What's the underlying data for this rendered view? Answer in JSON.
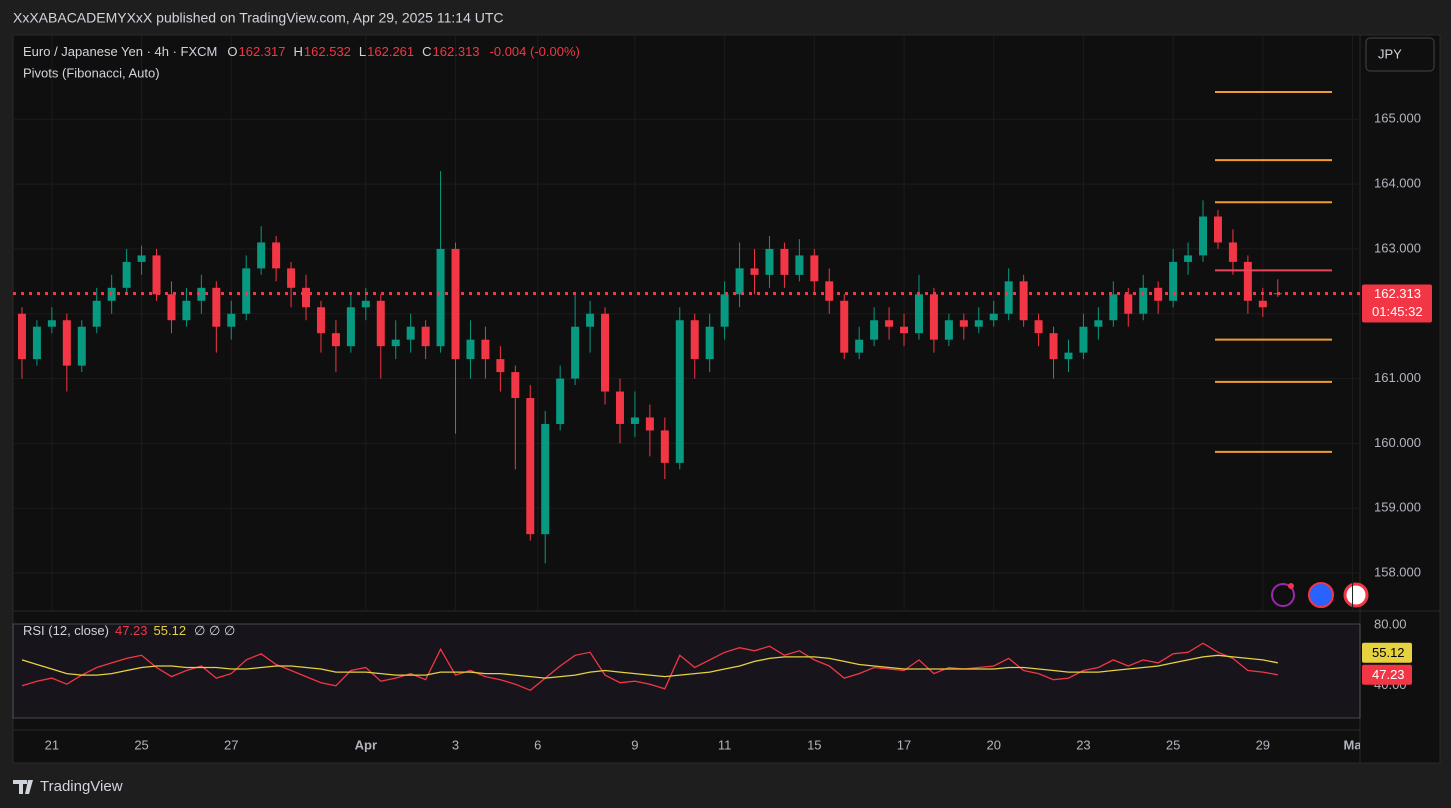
{
  "header": {
    "published": "XxXABACADEMYXxX published on TradingView.com, Apr 29, 2025 11:14 UTC",
    "brand": "TradingView"
  },
  "chart_data": {
    "type": "candlestick",
    "symbol": "Euro / Japanese Yen · 4h · FXCM",
    "ohlc_labels": [
      "O",
      "H",
      "L",
      "C"
    ],
    "change": {
      "value": -0.004,
      "label": "-0.004 (-0.00%)"
    },
    "currency": "JPY",
    "countdown": "01:45:32",
    "up_color": "#089981",
    "down_color": "#f23645",
    "grid": true,
    "candles": [
      [
        162.0,
        162.1,
        161.0,
        161.3
      ],
      [
        161.3,
        161.9,
        161.2,
        161.8
      ],
      [
        161.8,
        162.1,
        161.7,
        161.9
      ],
      [
        161.9,
        162.0,
        160.8,
        161.2
      ],
      [
        161.2,
        161.9,
        161.1,
        161.8
      ],
      [
        161.8,
        162.4,
        161.7,
        162.2
      ],
      [
        162.2,
        162.6,
        162.0,
        162.4
      ],
      [
        162.4,
        163.0,
        162.3,
        162.8
      ],
      [
        162.8,
        163.05,
        162.6,
        162.9
      ],
      [
        162.9,
        163.0,
        162.2,
        162.3
      ],
      [
        162.3,
        162.5,
        161.7,
        161.9
      ],
      [
        161.9,
        162.4,
        161.8,
        162.2
      ],
      [
        162.2,
        162.6,
        162.0,
        162.4
      ],
      [
        162.4,
        162.5,
        161.4,
        161.8
      ],
      [
        161.8,
        162.2,
        161.6,
        162.0
      ],
      [
        162.0,
        162.9,
        161.9,
        162.7
      ],
      [
        162.7,
        163.35,
        162.6,
        163.1
      ],
      [
        163.1,
        163.2,
        162.5,
        162.7
      ],
      [
        162.7,
        162.8,
        162.1,
        162.4
      ],
      [
        162.4,
        162.6,
        161.9,
        162.1
      ],
      [
        162.1,
        162.2,
        161.4,
        161.7
      ],
      [
        161.7,
        161.9,
        161.1,
        161.5
      ],
      [
        161.5,
        162.3,
        161.4,
        162.1
      ],
      [
        162.1,
        162.4,
        161.9,
        162.2
      ],
      [
        162.2,
        162.3,
        161.0,
        161.5
      ],
      [
        161.5,
        161.9,
        161.3,
        161.6
      ],
      [
        161.6,
        162.0,
        161.4,
        161.8
      ],
      [
        161.8,
        161.9,
        161.3,
        161.5
      ],
      [
        161.5,
        164.2,
        161.4,
        163.0
      ],
      [
        163.0,
        163.1,
        160.15,
        161.3
      ],
      [
        161.3,
        161.9,
        161.0,
        161.6
      ],
      [
        161.6,
        161.8,
        161.0,
        161.3
      ],
      [
        161.3,
        161.5,
        160.8,
        161.1
      ],
      [
        161.1,
        161.2,
        159.6,
        160.7
      ],
      [
        160.7,
        160.9,
        158.5,
        158.6
      ],
      [
        158.6,
        160.5,
        158.15,
        160.3
      ],
      [
        160.3,
        161.2,
        160.2,
        161.0
      ],
      [
        161.0,
        162.3,
        160.9,
        161.8
      ],
      [
        161.8,
        162.2,
        161.4,
        162.0
      ],
      [
        162.0,
        162.1,
        160.6,
        160.8
      ],
      [
        160.8,
        161.0,
        160.0,
        160.3
      ],
      [
        160.3,
        160.8,
        160.1,
        160.4
      ],
      [
        160.4,
        160.6,
        159.8,
        160.2
      ],
      [
        160.2,
        160.4,
        159.45,
        159.7
      ],
      [
        159.7,
        162.1,
        159.6,
        161.9
      ],
      [
        161.9,
        162.0,
        161.0,
        161.3
      ],
      [
        161.3,
        162.0,
        161.1,
        161.8
      ],
      [
        161.8,
        162.5,
        161.6,
        162.3
      ],
      [
        162.3,
        163.1,
        162.1,
        162.7
      ],
      [
        162.7,
        163.0,
        162.3,
        162.6
      ],
      [
        162.6,
        163.2,
        162.4,
        163.0
      ],
      [
        163.0,
        163.1,
        162.4,
        162.6
      ],
      [
        162.6,
        163.15,
        162.5,
        162.9
      ],
      [
        162.9,
        163.0,
        162.3,
        162.5
      ],
      [
        162.5,
        162.7,
        162.0,
        162.2
      ],
      [
        162.2,
        162.3,
        161.3,
        161.4
      ],
      [
        161.4,
        161.8,
        161.3,
        161.6
      ],
      [
        161.6,
        162.1,
        161.5,
        161.9
      ],
      [
        161.9,
        162.1,
        161.6,
        161.8
      ],
      [
        161.8,
        162.0,
        161.5,
        161.7
      ],
      [
        161.7,
        162.6,
        161.6,
        162.3
      ],
      [
        162.3,
        162.4,
        161.4,
        161.6
      ],
      [
        161.6,
        162.0,
        161.5,
        161.9
      ],
      [
        161.9,
        162.0,
        161.6,
        161.8
      ],
      [
        161.8,
        162.1,
        161.7,
        161.9
      ],
      [
        161.9,
        162.2,
        161.8,
        162.0
      ],
      [
        162.0,
        162.7,
        161.9,
        162.5
      ],
      [
        162.5,
        162.6,
        161.8,
        161.9
      ],
      [
        161.9,
        162.0,
        161.5,
        161.7
      ],
      [
        161.7,
        161.8,
        161.0,
        161.3
      ],
      [
        161.3,
        161.6,
        161.1,
        161.4
      ],
      [
        161.4,
        162.0,
        161.3,
        161.8
      ],
      [
        161.8,
        162.1,
        161.6,
        161.9
      ],
      [
        161.9,
        162.5,
        161.8,
        162.3
      ],
      [
        162.3,
        162.4,
        161.8,
        162.0
      ],
      [
        162.0,
        162.6,
        161.9,
        162.4
      ],
      [
        162.4,
        162.5,
        162.0,
        162.2
      ],
      [
        162.2,
        163.0,
        162.1,
        162.8
      ],
      [
        162.8,
        163.1,
        162.6,
        162.9
      ],
      [
        162.9,
        163.75,
        162.8,
        163.5
      ],
      [
        163.5,
        163.6,
        163.0,
        163.1
      ],
      [
        163.1,
        163.3,
        162.6,
        162.8
      ],
      [
        162.8,
        162.9,
        162.0,
        162.2
      ],
      [
        162.2,
        162.4,
        161.95,
        162.1
      ],
      [
        162.317,
        162.532,
        162.261,
        162.313
      ]
    ],
    "ylim": [
      157.43,
      166.3
    ],
    "yticks": [
      {
        "value": 158,
        "label": "158.000"
      },
      {
        "value": 159,
        "label": "159.000"
      },
      {
        "value": 160,
        "label": "160.000"
      },
      {
        "value": 161,
        "label": "161.000"
      },
      {
        "value": 162,
        "label": "162.000"
      },
      {
        "value": 163,
        "label": "163.000"
      },
      {
        "value": 164,
        "label": "164.000"
      },
      {
        "value": 165,
        "label": "165.000"
      }
    ],
    "xlim": [
      -0.6,
      89.5
    ],
    "xticks": [
      {
        "value": 2,
        "label": "21"
      },
      {
        "value": 8,
        "label": "25"
      },
      {
        "value": 14,
        "label": "27"
      },
      {
        "value": 23,
        "label": "Apr"
      },
      {
        "value": 29,
        "label": "3"
      },
      {
        "value": 34.5,
        "label": "6"
      },
      {
        "value": 41,
        "label": "9"
      },
      {
        "value": 47,
        "label": "11"
      },
      {
        "value": 53,
        "label": "15"
      },
      {
        "value": 59,
        "label": "17"
      },
      {
        "value": 65,
        "label": "20"
      },
      {
        "value": 71,
        "label": "23"
      },
      {
        "value": 77,
        "label": "25"
      },
      {
        "value": 83,
        "label": "29"
      },
      {
        "value": 89,
        "label": "Ma"
      }
    ],
    "pivots": {
      "name": "Pivots (Fibonacci, Auto)",
      "levels": [
        165.42,
        164.37,
        163.72,
        162.67,
        161.6,
        160.95,
        159.87
      ],
      "colors": [
        "#f39c2c",
        "#f39c2c",
        "#f39c2c",
        "#e8455a",
        "#f39c2c",
        "#f39c2c",
        "#f39c2c"
      ]
    },
    "rsi": {
      "name": "RSI (12, close)",
      "extra": "∅ ∅ ∅",
      "ylim": [
        18.8,
        80.6
      ],
      "yticks": [
        {
          "value": 80,
          "label": "80.00"
        },
        {
          "value": 40,
          "label": "40.00"
        }
      ],
      "series": [
        {
          "color": "#f23645",
          "values": [
            40,
            43,
            45,
            41,
            47,
            52,
            55,
            58,
            60,
            52,
            46,
            50,
            53,
            45,
            48,
            57,
            61,
            54,
            50,
            46,
            42,
            40,
            50,
            52,
            43,
            45,
            48,
            44,
            64,
            47,
            50,
            46,
            44,
            41,
            37,
            45,
            53,
            60,
            62,
            47,
            42,
            43,
            41,
            38,
            60,
            52,
            57,
            62,
            65,
            63,
            66,
            60,
            63,
            57,
            53,
            45,
            48,
            52,
            51,
            50,
            57,
            48,
            52,
            51,
            52,
            53,
            58,
            50,
            48,
            44,
            45,
            50,
            52,
            57,
            53,
            57,
            55,
            61,
            62,
            68,
            62,
            58,
            50,
            49,
            47.23
          ]
        },
        {
          "color": "#e6d23f",
          "values": [
            57,
            54,
            51,
            48,
            47,
            47,
            48,
            50,
            52,
            53,
            53,
            52,
            52,
            52,
            51,
            51,
            52,
            53,
            53,
            52,
            51,
            49,
            49,
            49,
            48,
            47,
            47,
            47,
            49,
            49,
            49,
            48,
            48,
            47,
            46,
            45,
            46,
            47,
            49,
            50,
            49,
            48,
            47,
            46,
            47,
            48,
            49,
            51,
            53,
            56,
            58,
            59,
            59,
            59,
            58,
            56,
            54,
            53,
            52,
            51,
            51,
            51,
            51,
            51,
            51,
            51,
            52,
            52,
            51,
            50,
            49,
            49,
            49,
            50,
            51,
            52,
            53,
            55,
            57,
            59,
            60,
            59,
            58,
            57,
            55.12
          ]
        }
      ]
    }
  }
}
